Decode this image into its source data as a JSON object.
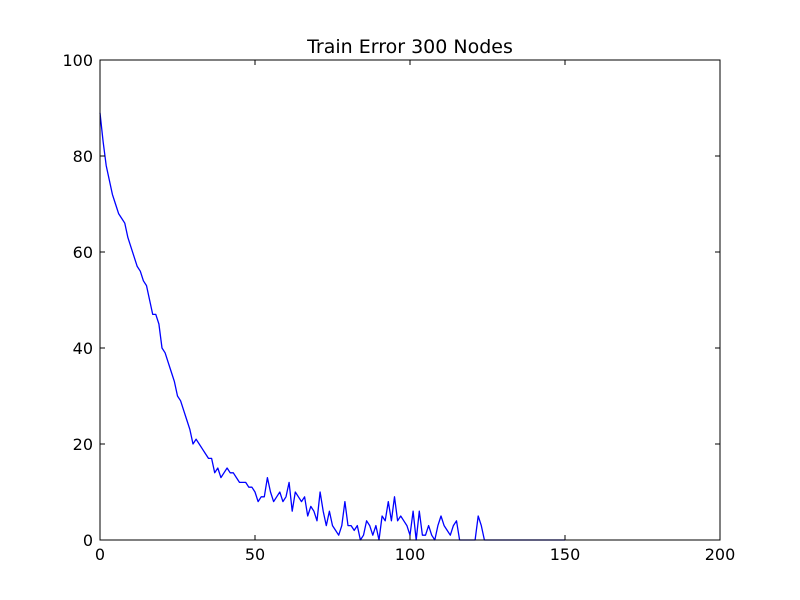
{
  "chart_data": {
    "type": "line",
    "title": "Train Error 300 Nodes",
    "xlabel": "",
    "ylabel": "",
    "xlim": [
      0,
      200
    ],
    "ylim": [
      0,
      100
    ],
    "xticks": [
      0,
      50,
      100,
      150,
      200
    ],
    "yticks": [
      0,
      20,
      40,
      60,
      80,
      100
    ],
    "grid": false,
    "legend": "none",
    "series": [
      {
        "color": "#0000ff",
        "x": [
          0,
          1,
          2,
          3,
          4,
          5,
          6,
          7,
          8,
          9,
          10,
          11,
          12,
          13,
          14,
          15,
          16,
          17,
          18,
          19,
          20,
          21,
          22,
          23,
          24,
          25,
          26,
          27,
          28,
          29,
          30,
          31,
          32,
          33,
          34,
          35,
          36,
          37,
          38,
          39,
          40,
          41,
          42,
          43,
          44,
          45,
          46,
          47,
          48,
          49,
          50,
          51,
          52,
          53,
          54,
          55,
          56,
          57,
          58,
          59,
          60,
          61,
          62,
          63,
          64,
          65,
          66,
          67,
          68,
          69,
          70,
          71,
          72,
          73,
          74,
          75,
          76,
          77,
          78,
          79,
          80,
          81,
          82,
          83,
          84,
          85,
          86,
          87,
          88,
          89,
          90,
          91,
          92,
          93,
          94,
          95,
          96,
          97,
          98,
          99,
          100,
          101,
          102,
          103,
          104,
          105,
          106,
          107,
          108,
          109,
          110,
          111,
          112,
          113,
          114,
          115,
          116,
          117,
          118,
          119,
          120,
          121,
          122,
          123,
          124,
          125,
          126,
          127,
          128,
          129,
          130,
          131,
          132,
          133,
          134,
          135,
          136,
          137,
          138,
          139,
          140,
          141,
          142,
          143,
          144,
          145,
          146,
          147,
          148,
          149,
          150
        ],
        "y": [
          89,
          83,
          78,
          75,
          72,
          70,
          68,
          67,
          66,
          63,
          61,
          59,
          57,
          56,
          54,
          53,
          50,
          47,
          47,
          45,
          40,
          39,
          37,
          35,
          33,
          30,
          29,
          27,
          25,
          23,
          20,
          21,
          20,
          19,
          18,
          17,
          17,
          14,
          15,
          13,
          14,
          15,
          14,
          14,
          13,
          12,
          12,
          12,
          11,
          11,
          10,
          8,
          9,
          9,
          13,
          10,
          8,
          9,
          10,
          8,
          9,
          12,
          6,
          10,
          9,
          8,
          9,
          5,
          7,
          6,
          4,
          10,
          6,
          3,
          6,
          3,
          2,
          1,
          3,
          8,
          3,
          3,
          2,
          3,
          0,
          1,
          4,
          3,
          1,
          3,
          0,
          5,
          4,
          8,
          4,
          9,
          4,
          5,
          4,
          3,
          1,
          6,
          0,
          6,
          1,
          1,
          3,
          1,
          0,
          3,
          5,
          3,
          2,
          1,
          3,
          4,
          0,
          0,
          0,
          0,
          0,
          0,
          5,
          3,
          0,
          0,
          0,
          0,
          0,
          0,
          0,
          0,
          0,
          0,
          0,
          0,
          0,
          0,
          0,
          0,
          0,
          0,
          0,
          0,
          0,
          0,
          0,
          0,
          0,
          0,
          0
        ]
      }
    ]
  }
}
